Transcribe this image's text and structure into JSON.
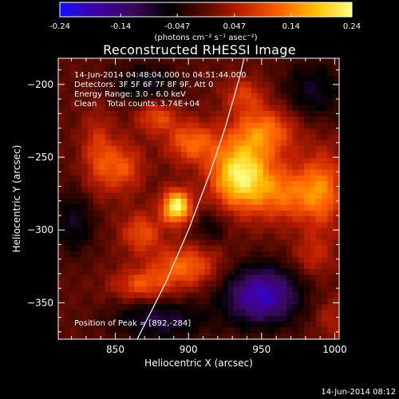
{
  "chart_data": {
    "type": "heatmap",
    "title": "Reconstructed RHESSI Image",
    "xlabel": "Heliocentric X (arcsec)",
    "ylabel": "Heliocentric Y (arcsec)",
    "xlim": [
      811,
      1003
    ],
    "ylim": [
      -375,
      -182
    ],
    "x_ticks": [
      850,
      900,
      950,
      1000
    ],
    "y_ticks": [
      -200,
      -250,
      -300,
      -350
    ],
    "colorbar": {
      "range": [
        -0.24,
        0.24
      ],
      "ticks": [
        "-0.24",
        "-0.14",
        "-0.047",
        "0.047",
        "0.14",
        "0.24"
      ],
      "unit_label": "(photons cm⁻² s⁻¹ asec⁻²)",
      "colormap": [
        "#1010ff",
        "#4000a0",
        "#3a0a5a",
        "#000000",
        "#5a0a00",
        "#c02000",
        "#ff6000",
        "#ffc000",
        "#ffff80"
      ]
    },
    "info_lines": [
      "14-Jun-2014 04:48:04.000 to 04:51:44.000",
      "Detectors: 3F 5F 6F 7F 8F 9F, Att 0",
      "Energy Range: 3.0 - 6.0 keV",
      "Clean    Total counts: 3.74E+04"
    ],
    "peak_label": "Position of Peak = [892,-284]",
    "peak": [
      892,
      -284
    ],
    "timestamp": "14-Jun-2014 08:12",
    "limb_curve": [
      [
        865,
        -375
      ],
      [
        885,
        -335
      ],
      [
        900,
        -300
      ],
      [
        915,
        -260
      ],
      [
        925,
        -230
      ],
      [
        935,
        -195
      ],
      [
        938,
        -182
      ]
    ],
    "sources": [
      {
        "x": 892,
        "y": -284,
        "amp": 0.24,
        "sx": 7,
        "sy": 8
      },
      {
        "x": 935,
        "y": -262,
        "amp": 0.22,
        "sx": 14,
        "sy": 16
      },
      {
        "x": 952,
        "y": -232,
        "amp": 0.13,
        "sx": 16,
        "sy": 12
      },
      {
        "x": 968,
        "y": -275,
        "amp": 0.12,
        "sx": 18,
        "sy": 14
      },
      {
        "x": 902,
        "y": -240,
        "amp": 0.12,
        "sx": 12,
        "sy": 10
      },
      {
        "x": 855,
        "y": -257,
        "amp": 0.1,
        "sx": 10,
        "sy": 12
      },
      {
        "x": 878,
        "y": -222,
        "amp": 0.1,
        "sx": 10,
        "sy": 8
      },
      {
        "x": 838,
        "y": -247,
        "amp": 0.08,
        "sx": 8,
        "sy": 20
      },
      {
        "x": 868,
        "y": -302,
        "amp": 0.1,
        "sx": 10,
        "sy": 10
      },
      {
        "x": 898,
        "y": -325,
        "amp": 0.12,
        "sx": 16,
        "sy": 10
      },
      {
        "x": 868,
        "y": -338,
        "amp": 0.1,
        "sx": 14,
        "sy": 8
      },
      {
        "x": 992,
        "y": -272,
        "amp": 0.1,
        "sx": 10,
        "sy": 20
      },
      {
        "x": 938,
        "y": -207,
        "amp": 0.08,
        "sx": 10,
        "sy": 8
      },
      {
        "x": 985,
        "y": -318,
        "amp": 0.06,
        "sx": 10,
        "sy": 10
      },
      {
        "x": 950,
        "y": -345,
        "amp": -0.2,
        "sx": 18,
        "sy": 14
      },
      {
        "x": 880,
        "y": -362,
        "amp": -0.1,
        "sx": 22,
        "sy": 10
      },
      {
        "x": 870,
        "y": -200,
        "amp": -0.08,
        "sx": 16,
        "sy": 10
      },
      {
        "x": 985,
        "y": -205,
        "amp": -0.08,
        "sx": 15,
        "sy": 15
      },
      {
        "x": 822,
        "y": -295,
        "amp": -0.08,
        "sx": 10,
        "sy": 15
      },
      {
        "x": 915,
        "y": -298,
        "amp": -0.06,
        "sx": 8,
        "sy": 8
      },
      {
        "x": 998,
        "y": -360,
        "amp": 0.05,
        "sx": 8,
        "sy": 10
      }
    ]
  }
}
